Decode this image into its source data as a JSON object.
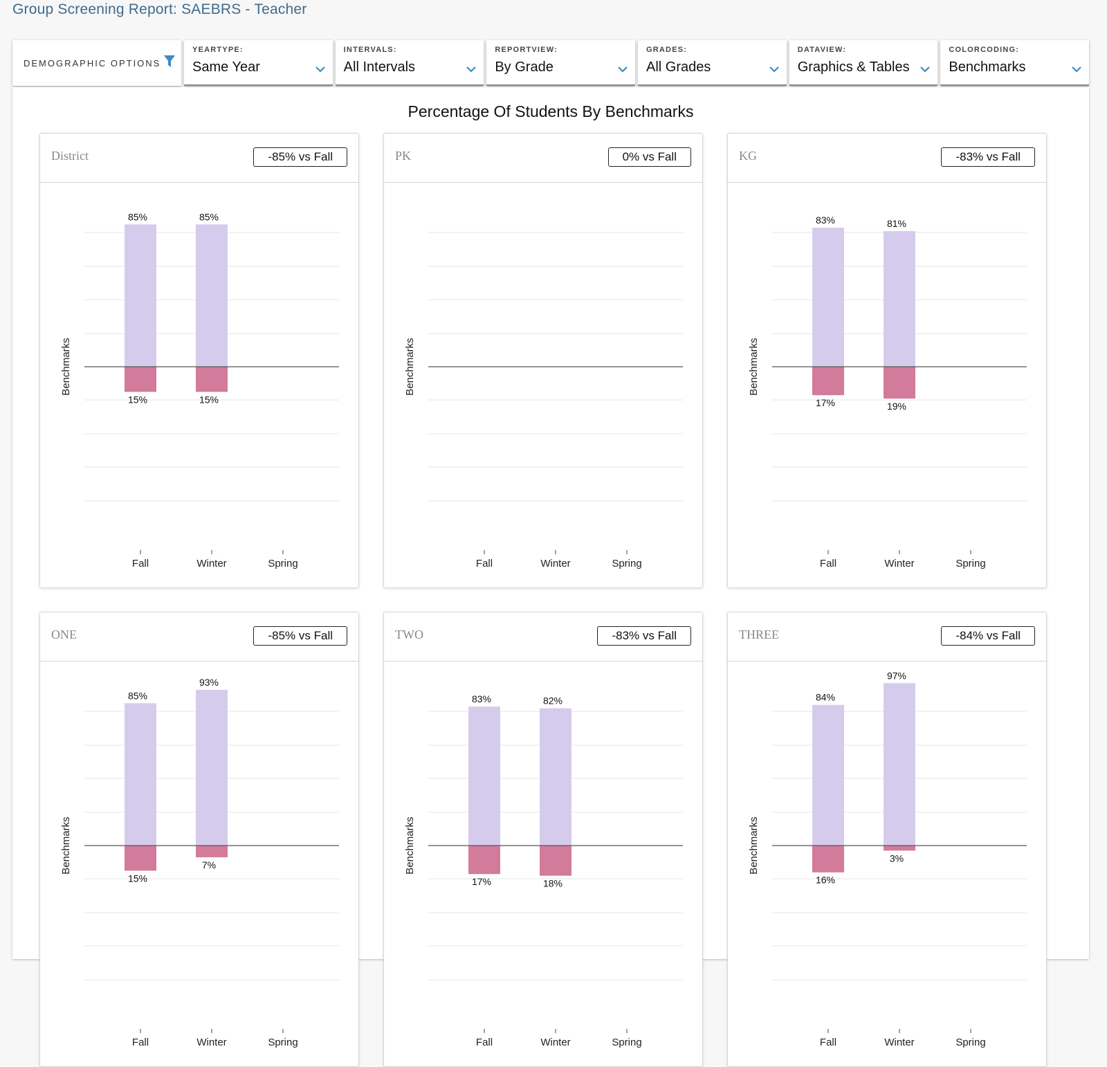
{
  "page": {
    "title": "Group Screening Report: SAEBRS - Teacher"
  },
  "toolbar": {
    "demographic_label": "DEMOGRAPHIC OPTIONS",
    "dropdowns": [
      {
        "label": "YEARTYPE:",
        "value": "Same Year"
      },
      {
        "label": "INTERVALS:",
        "value": "All Intervals"
      },
      {
        "label": "REPORTVIEW:",
        "value": "By Grade"
      },
      {
        "label": "GRADES:",
        "value": "All Grades"
      },
      {
        "label": "DATAVIEW:",
        "value": "Graphics & Tables"
      },
      {
        "label": "COLORCODING:",
        "value": "Benchmarks"
      }
    ]
  },
  "main": {
    "title": "Percentage Of Students By Benchmarks"
  },
  "colors": {
    "above": "#d5cced",
    "below": "#d27b9b",
    "accent": "#3a8cc4"
  },
  "chart_data": [
    {
      "type": "bar",
      "name": "District",
      "change": "-85% vs Fall",
      "ylabel": "Benchmarks",
      "categories": [
        "Fall",
        "Winter",
        "Spring"
      ],
      "series": [
        {
          "values": [
            85,
            85,
            null
          ]
        },
        {
          "values": [
            15,
            15,
            null
          ]
        }
      ]
    },
    {
      "type": "bar",
      "name": "PK",
      "change": "0% vs Fall",
      "ylabel": "Benchmarks",
      "categories": [
        "Fall",
        "Winter",
        "Spring"
      ],
      "series": [
        {
          "values": [
            null,
            null,
            null
          ]
        },
        {
          "values": [
            null,
            null,
            null
          ]
        }
      ]
    },
    {
      "type": "bar",
      "name": "KG",
      "change": "-83% vs Fall",
      "ylabel": "Benchmarks",
      "categories": [
        "Fall",
        "Winter",
        "Spring"
      ],
      "series": [
        {
          "values": [
            83,
            81,
            null
          ]
        },
        {
          "values": [
            17,
            19,
            null
          ]
        }
      ]
    },
    {
      "type": "bar",
      "name": "ONE",
      "change": "-85% vs Fall",
      "ylabel": "Benchmarks",
      "categories": [
        "Fall",
        "Winter",
        "Spring"
      ],
      "series": [
        {
          "values": [
            85,
            93,
            null
          ]
        },
        {
          "values": [
            15,
            7,
            null
          ]
        }
      ]
    },
    {
      "type": "bar",
      "name": "TWO",
      "change": "-83% vs Fall",
      "ylabel": "Benchmarks",
      "categories": [
        "Fall",
        "Winter",
        "Spring"
      ],
      "series": [
        {
          "values": [
            83,
            82,
            null
          ]
        },
        {
          "values": [
            17,
            18,
            null
          ]
        }
      ]
    },
    {
      "type": "bar",
      "name": "THREE",
      "change": "-84% vs Fall",
      "ylabel": "Benchmarks",
      "categories": [
        "Fall",
        "Winter",
        "Spring"
      ],
      "series": [
        {
          "values": [
            84,
            97,
            null
          ]
        },
        {
          "values": [
            16,
            3,
            null
          ]
        }
      ]
    }
  ]
}
